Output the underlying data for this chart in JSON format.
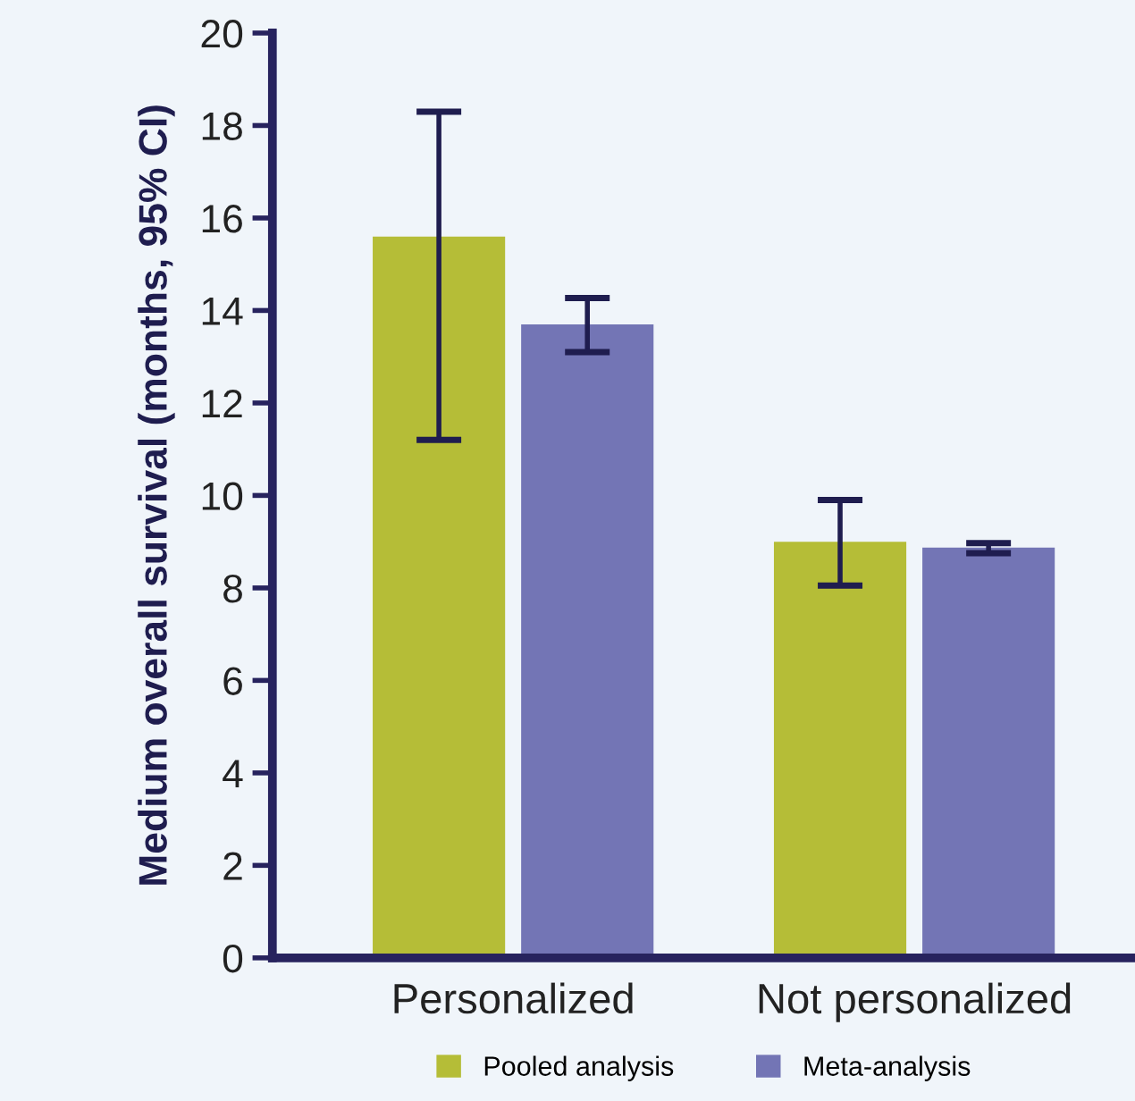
{
  "chart_data": {
    "type": "bar",
    "ylabel": "Medium overall survival (months, 95% CI)",
    "categories": [
      "Personalized",
      "Not personalized"
    ],
    "series": [
      {
        "name": "Pooled analysis",
        "color": "#b5bd37",
        "values": [
          15.6,
          9.0
        ],
        "errors": [
          [
            11.2,
            18.3
          ],
          [
            8.05,
            9.9
          ]
        ]
      },
      {
        "name": "Meta-analysis",
        "color": "#7375b5",
        "values": [
          13.7,
          8.87
        ],
        "errors": [
          [
            13.1,
            14.27
          ],
          [
            8.75,
            8.97
          ]
        ]
      }
    ],
    "ylim": [
      0,
      20
    ],
    "yticks": [
      0,
      2,
      4,
      6,
      8,
      10,
      12,
      14,
      16,
      18,
      20
    ],
    "grid": false,
    "legend": "bottom"
  }
}
